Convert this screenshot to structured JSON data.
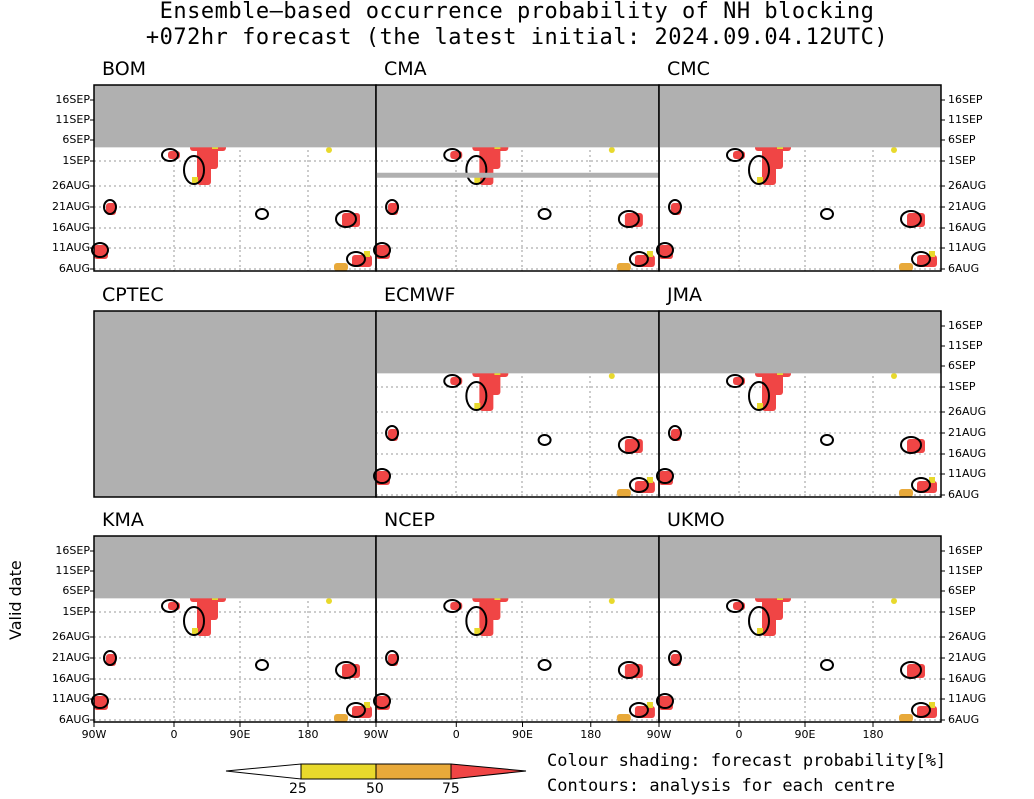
{
  "title_line1": "Ensemble–based occurrence probability of NH blocking",
  "title_line2": "+072hr forecast (the latest initial: 2024.09.04.12UTC)",
  "y_axis_title": "Valid date",
  "legend_line1": "Colour shading: forecast probability[%]",
  "legend_line2": "Contours: analysis for each centre",
  "colorbar_labels": [
    "25",
    "50",
    "75"
  ],
  "colors": {
    "c25": "#e8d92c",
    "c50": "#e8a93a",
    "c75": "#f04545",
    "missing": "#b0b0b0"
  },
  "chart_data": {
    "type": "heatmap",
    "x_ticks": [
      "90W",
      "0",
      "90E",
      "180"
    ],
    "y_ticks": [
      "16SEP",
      "11SEP",
      "6SEP",
      "1SEP",
      "26AUG",
      "21AUG",
      "16AUG",
      "11AUG",
      "6AUG"
    ],
    "grid": true,
    "panels": [
      {
        "name": "BOM",
        "no_data_from": "7SEP",
        "no_data_dates": []
      },
      {
        "name": "CMA",
        "no_data_from": "7SEP",
        "no_data_dates": [
          "29AUG"
        ]
      },
      {
        "name": "CMC",
        "no_data_from": "7SEP",
        "no_data_dates": []
      },
      {
        "name": "CPTEC",
        "no_data_from": "6AUG",
        "no_data_dates": []
      },
      {
        "name": "ECMWF",
        "no_data_from": "7SEP",
        "no_data_dates": []
      },
      {
        "name": "JMA",
        "no_data_from": "7SEP",
        "no_data_dates": []
      },
      {
        "name": "KMA",
        "no_data_from": "7SEP",
        "no_data_dates": []
      },
      {
        "name": "NCEP",
        "no_data_from": "7SEP",
        "no_data_dates": []
      },
      {
        "name": "UKMO",
        "no_data_from": "7SEP",
        "no_data_dates": []
      }
    ]
  }
}
